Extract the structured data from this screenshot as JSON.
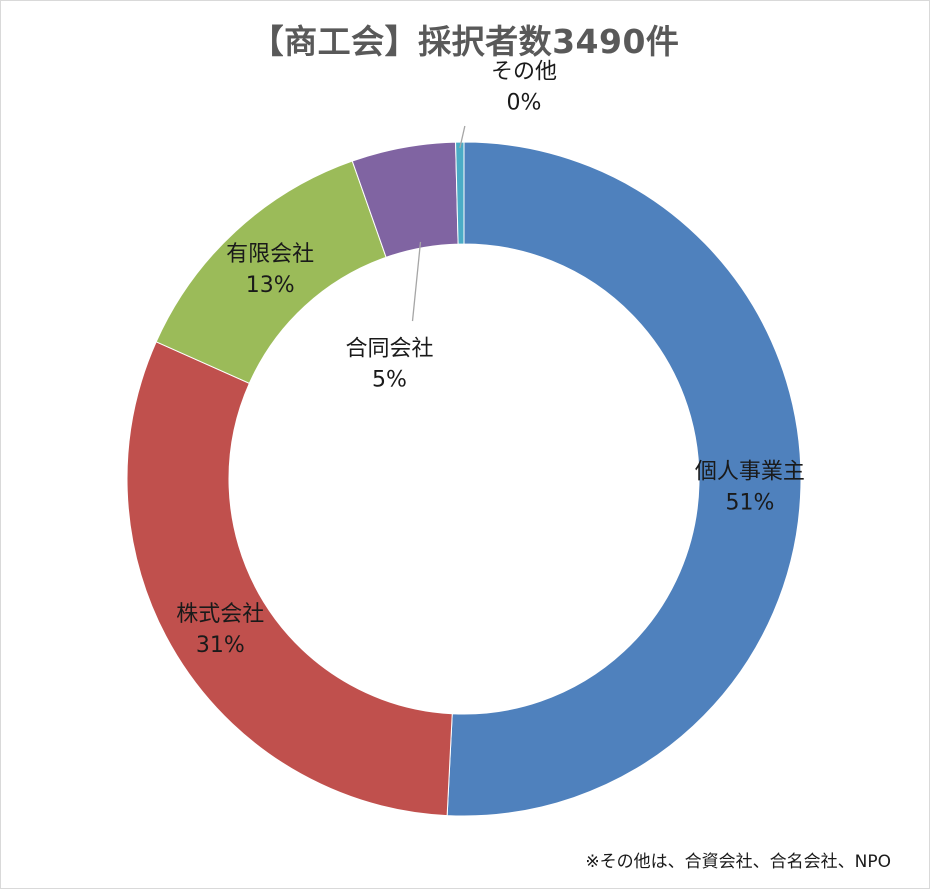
{
  "chart_data": {
    "type": "pie",
    "title": "【商工会】採択者数3490件",
    "categories": [
      "個人事業主",
      "株式会社",
      "有限会社",
      "合同会社",
      "その他"
    ],
    "values": [
      51,
      31,
      13,
      5,
      0
    ],
    "value_labels": [
      "51%",
      "31%",
      "13%",
      "5%",
      "0%"
    ],
    "donut": true,
    "colors": [
      "#4f81bd",
      "#c0504d",
      "#9bbb59",
      "#8064a2",
      "#4bacc6"
    ],
    "legend": "none",
    "footnote": "※その他は、合資会社、合名会社、NPO"
  }
}
